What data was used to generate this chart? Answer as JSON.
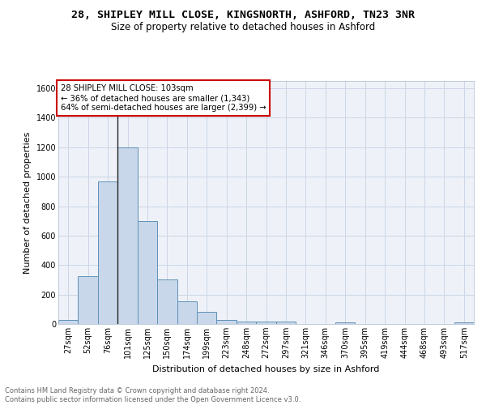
{
  "title1": "28, SHIPLEY MILL CLOSE, KINGSNORTH, ASHFORD, TN23 3NR",
  "title2": "Size of property relative to detached houses in Ashford",
  "xlabel": "Distribution of detached houses by size in Ashford",
  "ylabel": "Number of detached properties",
  "categories": [
    "27sqm",
    "52sqm",
    "76sqm",
    "101sqm",
    "125sqm",
    "150sqm",
    "174sqm",
    "199sqm",
    "223sqm",
    "248sqm",
    "272sqm",
    "297sqm",
    "321sqm",
    "346sqm",
    "370sqm",
    "395sqm",
    "419sqm",
    "444sqm",
    "468sqm",
    "493sqm",
    "517sqm"
  ],
  "values": [
    28,
    325,
    968,
    1200,
    700,
    305,
    155,
    80,
    25,
    15,
    15,
    15,
    0,
    0,
    12,
    0,
    0,
    0,
    0,
    0,
    12
  ],
  "bar_color": "#c8d8ea",
  "bar_edge_color": "#6090b8",
  "annotation_text": "28 SHIPLEY MILL CLOSE: 103sqm\n← 36% of detached houses are smaller (1,343)\n64% of semi-detached houses are larger (2,399) →",
  "annotation_box_color": "#ffffff",
  "annotation_box_edge": "#cc0000",
  "vline_color": "#222222",
  "ylim": [
    0,
    1650
  ],
  "yticks": [
    0,
    200,
    400,
    600,
    800,
    1000,
    1200,
    1400,
    1600
  ],
  "grid_color": "#ccd6e6",
  "bg_color": "#eef2f8",
  "footer_text": "Contains HM Land Registry data © Crown copyright and database right 2024.\nContains public sector information licensed under the Open Government Licence v3.0.",
  "title1_fontsize": 9.5,
  "title2_fontsize": 8.5,
  "xlabel_fontsize": 8,
  "ylabel_fontsize": 8,
  "tick_fontsize": 7,
  "footer_fontsize": 6
}
